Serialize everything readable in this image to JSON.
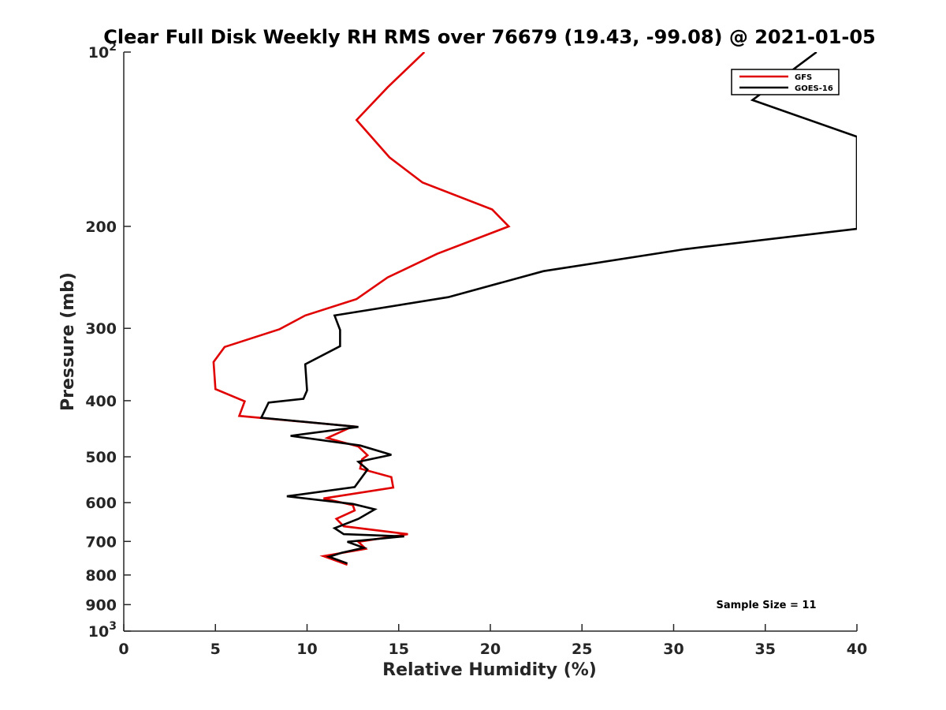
{
  "chart_data": {
    "type": "line",
    "title": "Clear Full Disk Weekly RH RMS over 76679 (19.43, -99.08) @ 2021-01-05",
    "xlabel": "Relative Humidity (%)",
    "ylabel": "Pressure (mb)",
    "xlim": [
      0,
      40
    ],
    "ylim": [
      100,
      1000
    ],
    "y_scale": "log",
    "y_reversed": true,
    "grid": false,
    "legend_position": "top-right",
    "x_ticks": [
      "0",
      "5",
      "10",
      "15",
      "20",
      "25",
      "30",
      "35",
      "40"
    ],
    "y_ticks": [
      {
        "value": 100,
        "base": "10",
        "exp": "2"
      },
      {
        "value": 200,
        "label": "200"
      },
      {
        "value": 300,
        "label": "300"
      },
      {
        "value": 400,
        "label": "400"
      },
      {
        "value": 500,
        "label": "500"
      },
      {
        "value": 600,
        "label": "600"
      },
      {
        "value": 700,
        "label": "700"
      },
      {
        "value": 800,
        "label": "800"
      },
      {
        "value": 900,
        "label": "900"
      },
      {
        "value": 1000,
        "base": "10",
        "exp": "3"
      }
    ],
    "series": [
      {
        "name": "GFS",
        "color": "#e00000",
        "x": [
          16.4,
          14.4,
          12.7,
          14.5,
          16.3,
          20.1,
          21.0,
          17.1,
          14.4,
          12.7,
          9.9,
          8.5,
          5.5,
          4.9,
          5.0,
          6.6,
          6.3,
          12.5,
          11.1,
          12.8,
          13.3,
          13.0,
          12.9,
          14.6,
          14.7,
          10.9,
          12.5,
          12.6,
          11.6,
          12.0,
          15.5,
          12.8,
          13.2,
          10.9,
          12.2
        ],
        "y": [
          100,
          115,
          131,
          152,
          168,
          187,
          200,
          223,
          245,
          267,
          285,
          301,
          323,
          343,
          382,
          401,
          425,
          443,
          464,
          480,
          497,
          505,
          524,
          542,
          565,
          590,
          606,
          619,
          640,
          659,
          680,
          701,
          721,
          742,
          768
        ]
      },
      {
        "name": "GOES-16",
        "color": "#000000",
        "x": [
          37.8,
          34.3,
          40.0,
          40.0,
          30.6,
          22.9,
          17.7,
          11.5,
          11.8,
          11.8,
          9.9,
          10.0,
          9.8,
          7.9,
          7.5,
          12.8,
          9.1,
          12.9,
          14.6,
          12.8,
          13.3,
          12.6,
          8.9,
          12.5,
          13.7,
          12.8,
          11.5,
          12.0,
          15.3,
          12.2,
          13.1,
          11.9,
          11.2,
          12.2
        ],
        "y": [
          100,
          121,
          140,
          202,
          219,
          239,
          265,
          285,
          302,
          322,
          346,
          384,
          397,
          403,
          428,
          444,
          460,
          478,
          496,
          510,
          526,
          564,
          585,
          603,
          616,
          640,
          664,
          680,
          686,
          701,
          718,
          732,
          744,
          764
        ]
      }
    ],
    "annotations": [
      "Sample Size = 11"
    ]
  }
}
